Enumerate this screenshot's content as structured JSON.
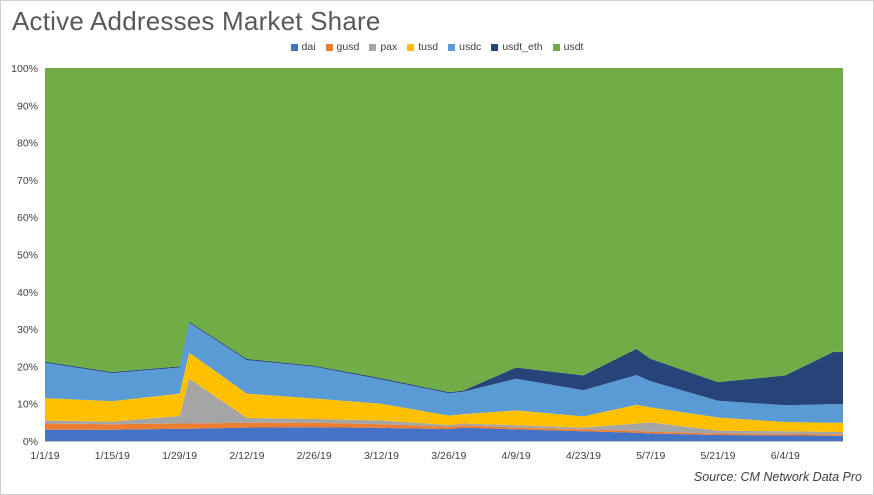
{
  "chart_data": {
    "type": "area",
    "stacked": true,
    "percent": true,
    "title": "Active Addresses Market Share",
    "source": "Source: CM Network Data Pro",
    "legend_position": "top",
    "grid": false,
    "ylim": [
      0,
      100
    ],
    "yticks": [
      "0%",
      "10%",
      "20%",
      "30%",
      "40%",
      "50%",
      "60%",
      "70%",
      "80%",
      "90%",
      "100%"
    ],
    "x_start": "2019-01-01",
    "x_end": "2019-06-16",
    "xticks": [
      "1/1/19",
      "1/15/19",
      "1/29/19",
      "2/12/19",
      "2/26/19",
      "3/12/19",
      "3/26/19",
      "4/9/19",
      "4/23/19",
      "5/7/19",
      "5/21/19",
      "6/4/19"
    ],
    "x": [
      "2019-01-01",
      "2019-01-15",
      "2019-01-29",
      "2019-01-31",
      "2019-02-12",
      "2019-02-26",
      "2019-03-12",
      "2019-03-26",
      "2019-03-29",
      "2019-04-09",
      "2019-04-23",
      "2019-05-04",
      "2019-05-07",
      "2019-05-21",
      "2019-06-04",
      "2019-06-14",
      "2019-06-16"
    ],
    "series": [
      {
        "name": "dai",
        "color": "#4472c4",
        "values": [
          3.0,
          3.0,
          3.3,
          3.3,
          3.6,
          3.7,
          3.5,
          3.2,
          3.6,
          3.1,
          2.6,
          2.2,
          2.0,
          1.6,
          1.5,
          1.4,
          1.4
        ]
      },
      {
        "name": "gusd",
        "color": "#ed7d31",
        "values": [
          1.7,
          1.5,
          1.4,
          1.4,
          1.3,
          1.2,
          1.0,
          0.6,
          0.6,
          0.5,
          0.5,
          0.5,
          0.5,
          0.4,
          0.4,
          0.4,
          0.4
        ]
      },
      {
        "name": "pax",
        "color": "#a5a5a5",
        "values": [
          0.8,
          0.7,
          2.0,
          12.0,
          1.3,
          1.0,
          1.0,
          0.5,
          0.5,
          0.6,
          0.5,
          2.0,
          2.5,
          0.8,
          0.7,
          0.6,
          0.6
        ]
      },
      {
        "name": "tusd",
        "color": "#ffc000",
        "values": [
          6.0,
          5.5,
          6.0,
          7.0,
          6.5,
          5.5,
          4.5,
          2.5,
          2.5,
          4.0,
          3.0,
          5.0,
          4.0,
          3.5,
          2.5,
          2.5,
          2.5
        ]
      },
      {
        "name": "usdc",
        "color": "#5b9bd5",
        "values": [
          9.5,
          7.5,
          7.0,
          8.0,
          9.0,
          8.5,
          6.5,
          6.0,
          6.0,
          8.5,
          7.0,
          8.0,
          7.0,
          4.5,
          4.5,
          5.0,
          5.0
        ]
      },
      {
        "name": "usdt_eth",
        "color": "#264478",
        "values": [
          0.3,
          0.3,
          0.3,
          0.3,
          0.3,
          0.3,
          0.3,
          0.3,
          0.3,
          3.0,
          4.0,
          7.0,
          6.0,
          5.0,
          8.0,
          14.0,
          14.0
        ]
      },
      {
        "name": "usdt",
        "color": "#70ad47",
        "values": [
          78.7,
          81.5,
          80.0,
          68.0,
          78.0,
          79.8,
          83.2,
          86.9,
          86.5,
          80.3,
          82.4,
          75.3,
          78.0,
          84.2,
          82.4,
          76.1,
          76.1
        ]
      }
    ]
  }
}
